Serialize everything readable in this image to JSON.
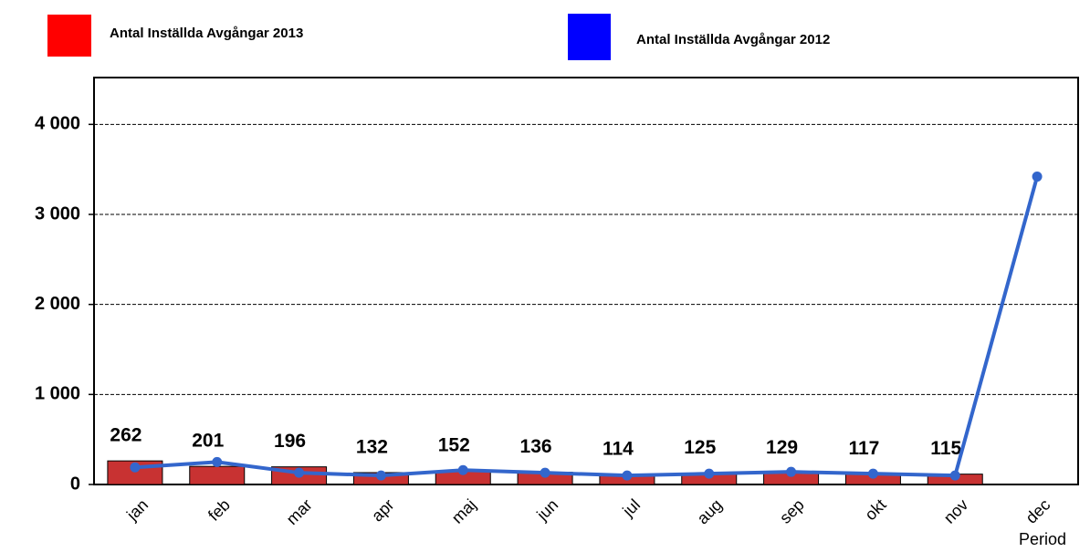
{
  "chart_data": {
    "type": "bar_line",
    "x_label": "Period",
    "categories": [
      "jan",
      "feb",
      "mar",
      "apr",
      "maj",
      "jun",
      "jul",
      "aug",
      "sep",
      "okt",
      "nov",
      "dec"
    ],
    "series": [
      {
        "name": "Antal Inställda Avgångar 2013",
        "color": "#c83232",
        "type": "bar",
        "values": [
          262,
          201,
          196,
          132,
          152,
          136,
          114,
          125,
          129,
          117,
          115,
          null
        ]
      },
      {
        "name": "Antal Inställda Avgångar 2012",
        "color": "#3366cc",
        "legend_color": "#0000ff",
        "type": "line",
        "values": [
          190,
          250,
          130,
          100,
          160,
          130,
          100,
          120,
          140,
          120,
          100,
          3420
        ]
      }
    ],
    "ylim": [
      0,
      4500
    ],
    "yticks": [
      0,
      {
        "value": 1000,
        "label": "1 000"
      },
      {
        "value": 2000,
        "label": "2 000"
      },
      {
        "value": 3000,
        "label": "3 000"
      },
      {
        "value": 4000,
        "label": "4 000"
      }
    ],
    "grid": true
  }
}
